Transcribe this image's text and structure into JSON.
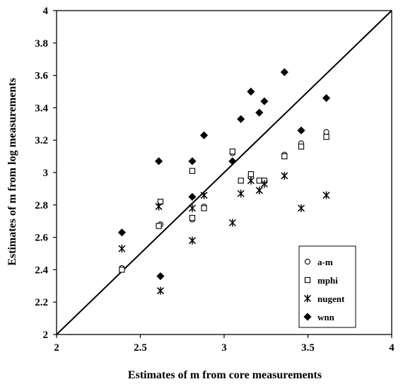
{
  "chart_data": {
    "type": "scatter",
    "title": "",
    "xlabel": "Estimates of m from core measurements",
    "ylabel": "Estimates of m from log measurements",
    "xlim": [
      2,
      4
    ],
    "ylim": [
      2,
      4
    ],
    "xticks": [
      "2",
      "2.5",
      "3",
      "3.5",
      "4"
    ],
    "yticks": [
      "2",
      "2.2",
      "2.4",
      "2.6",
      "2.8",
      "3",
      "3.2",
      "3.4",
      "3.6",
      "3.8",
      "4"
    ],
    "grid": false,
    "legend_position": "bottom-right",
    "reference_line": {
      "type": "y=x",
      "from": [
        2,
        2
      ],
      "to": [
        4,
        4
      ]
    },
    "series": [
      {
        "name": "a-m",
        "marker": "open-circle",
        "points": [
          [
            2.39,
            2.41
          ],
          [
            2.62,
            2.68
          ],
          [
            2.81,
            2.71
          ],
          [
            2.88,
            2.79
          ],
          [
            3.05,
            3.12
          ],
          [
            3.16,
            2.99
          ],
          [
            3.36,
            3.11
          ],
          [
            3.46,
            3.18
          ],
          [
            3.61,
            3.25
          ]
        ]
      },
      {
        "name": "mphi",
        "marker": "open-square",
        "points": [
          [
            2.39,
            2.4
          ],
          [
            2.61,
            2.67
          ],
          [
            2.62,
            2.82
          ],
          [
            2.81,
            3.01
          ],
          [
            2.81,
            2.72
          ],
          [
            2.88,
            2.78
          ],
          [
            3.05,
            3.13
          ],
          [
            3.1,
            2.95
          ],
          [
            3.16,
            2.99
          ],
          [
            3.21,
            2.95
          ],
          [
            3.24,
            2.95
          ],
          [
            3.36,
            3.1
          ],
          [
            3.46,
            3.16
          ],
          [
            3.61,
            3.22
          ]
        ]
      },
      {
        "name": "nugent",
        "marker": "asterisk",
        "points": [
          [
            2.39,
            2.53
          ],
          [
            2.61,
            2.79
          ],
          [
            2.62,
            2.27
          ],
          [
            2.81,
            2.78
          ],
          [
            2.81,
            2.58
          ],
          [
            2.88,
            2.86
          ],
          [
            3.05,
            2.69
          ],
          [
            3.1,
            2.87
          ],
          [
            3.16,
            2.95
          ],
          [
            3.21,
            2.89
          ],
          [
            3.24,
            2.93
          ],
          [
            3.36,
            2.98
          ],
          [
            3.46,
            2.78
          ],
          [
            3.61,
            2.86
          ]
        ]
      },
      {
        "name": "wnn",
        "marker": "filled-diamond",
        "points": [
          [
            2.39,
            2.63
          ],
          [
            2.61,
            3.07
          ],
          [
            2.62,
            2.36
          ],
          [
            2.81,
            3.07
          ],
          [
            2.81,
            2.85
          ],
          [
            2.88,
            3.23
          ],
          [
            3.05,
            3.07
          ],
          [
            3.1,
            3.33
          ],
          [
            3.16,
            3.5
          ],
          [
            3.21,
            3.37
          ],
          [
            3.24,
            3.44
          ],
          [
            3.36,
            3.62
          ],
          [
            3.46,
            3.26
          ],
          [
            3.61,
            3.46
          ]
        ]
      }
    ]
  }
}
